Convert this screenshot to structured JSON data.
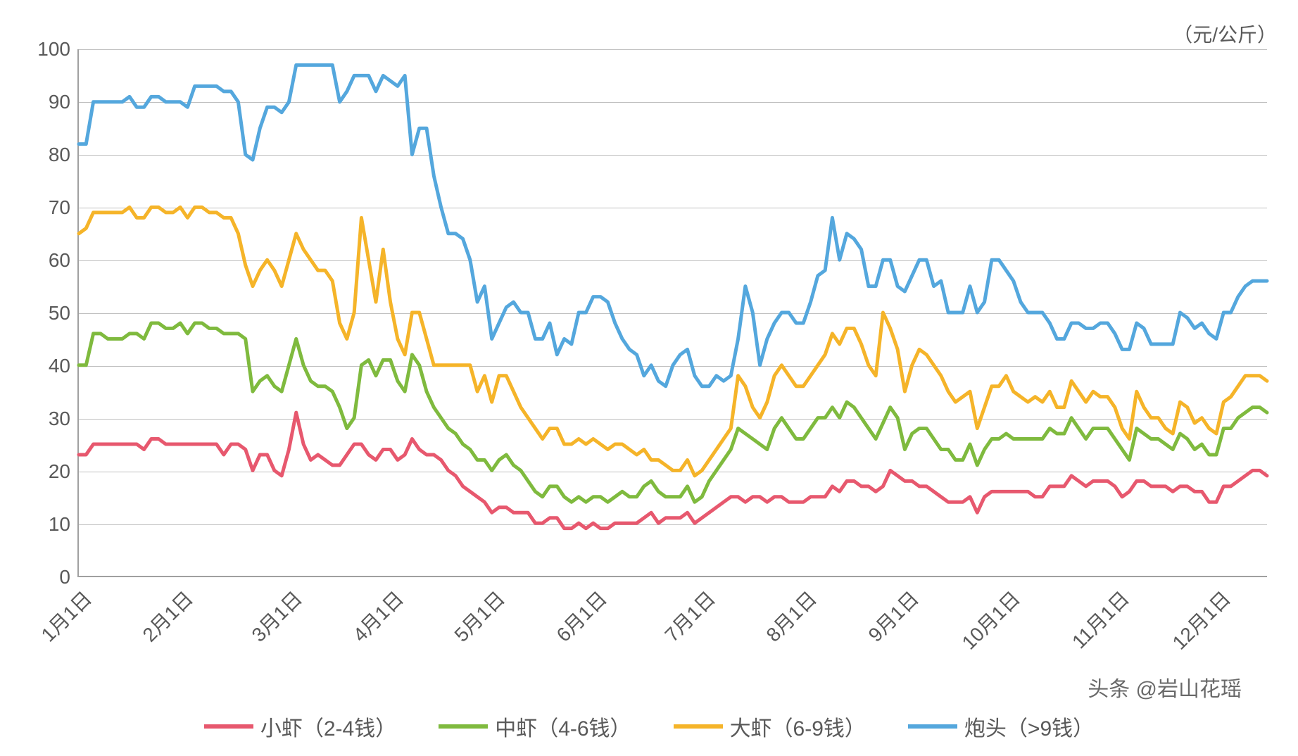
{
  "chart": {
    "type": "line",
    "unit_label": "（元/公斤）",
    "background_color": "#ffffff",
    "grid_color": "#bfbfbf",
    "axis_color": "#a0a0a0",
    "text_color": "#595959",
    "label_fontsize": 28,
    "legend_fontsize": 30,
    "line_width": 5,
    "ylim": [
      0,
      100
    ],
    "ytick_step": 10,
    "yticks": [
      0,
      10,
      20,
      30,
      40,
      50,
      60,
      70,
      80,
      90,
      100
    ],
    "x_categories": [
      "1月1日",
      "2月1日",
      "3月1日",
      "4月1日",
      "5月1日",
      "6月1日",
      "7月1日",
      "8月1日",
      "9月1日",
      "10月1日",
      "11月1日",
      "12月1日"
    ],
    "x_label_rotation": -45,
    "series": [
      {
        "name": "小虾（2-4钱）",
        "color": "#e7586e",
        "values": [
          23,
          23,
          25,
          25,
          25,
          25,
          25,
          25,
          25,
          24,
          26,
          26,
          25,
          25,
          25,
          25,
          25,
          25,
          25,
          25,
          23,
          25,
          25,
          24,
          20,
          23,
          23,
          20,
          19,
          24,
          31,
          25,
          22,
          23,
          22,
          21,
          21,
          23,
          25,
          25,
          23,
          22,
          24,
          24,
          22,
          23,
          26,
          24,
          23,
          23,
          22,
          20,
          19,
          17,
          16,
          15,
          14,
          12,
          13,
          13,
          12,
          12,
          12,
          10,
          10,
          11,
          11,
          9,
          9,
          10,
          9,
          10,
          9,
          9,
          10,
          10,
          10,
          10,
          11,
          12,
          10,
          11,
          11,
          11,
          12,
          10,
          11,
          12,
          13,
          14,
          15,
          15,
          14,
          15,
          15,
          14,
          15,
          15,
          14,
          14,
          14,
          15,
          15,
          15,
          17,
          16,
          18,
          18,
          17,
          17,
          16,
          17,
          20,
          19,
          18,
          18,
          17,
          17,
          16,
          15,
          14,
          14,
          14,
          15,
          12,
          15,
          16,
          16,
          16,
          16,
          16,
          16,
          15,
          15,
          17,
          17,
          17,
          19,
          18,
          17,
          18,
          18,
          18,
          17,
          15,
          16,
          18,
          18,
          17,
          17,
          17,
          16,
          17,
          17,
          16,
          16,
          14,
          14,
          17,
          17,
          18,
          19,
          20,
          20,
          19
        ]
      },
      {
        "name": "中虾（4-6钱）",
        "color": "#7fba3e",
        "values": [
          40,
          40,
          46,
          46,
          45,
          45,
          45,
          46,
          46,
          45,
          48,
          48,
          47,
          47,
          48,
          46,
          48,
          48,
          47,
          47,
          46,
          46,
          46,
          45,
          35,
          37,
          38,
          36,
          35,
          40,
          45,
          40,
          37,
          36,
          36,
          35,
          32,
          28,
          30,
          40,
          41,
          38,
          41,
          41,
          37,
          35,
          42,
          40,
          35,
          32,
          30,
          28,
          27,
          25,
          24,
          22,
          22,
          20,
          22,
          23,
          21,
          20,
          18,
          16,
          15,
          17,
          17,
          15,
          14,
          15,
          14,
          15,
          15,
          14,
          15,
          16,
          15,
          15,
          17,
          18,
          16,
          15,
          15,
          15,
          17,
          14,
          15,
          18,
          20,
          22,
          24,
          28,
          27,
          26,
          25,
          24,
          28,
          30,
          28,
          26,
          26,
          28,
          30,
          30,
          32,
          30,
          33,
          32,
          30,
          28,
          26,
          29,
          32,
          30,
          24,
          27,
          28,
          28,
          26,
          24,
          24,
          22,
          22,
          25,
          21,
          24,
          26,
          26,
          27,
          26,
          26,
          26,
          26,
          26,
          28,
          27,
          27,
          30,
          28,
          26,
          28,
          28,
          28,
          26,
          24,
          22,
          28,
          27,
          26,
          26,
          25,
          24,
          27,
          26,
          24,
          25,
          23,
          23,
          28,
          28,
          30,
          31,
          32,
          32,
          31
        ]
      },
      {
        "name": "大虾（6-9钱）",
        "color": "#f5b429",
        "values": [
          65,
          66,
          69,
          69,
          69,
          69,
          69,
          70,
          68,
          68,
          70,
          70,
          69,
          69,
          70,
          68,
          70,
          70,
          69,
          69,
          68,
          68,
          65,
          59,
          55,
          58,
          60,
          58,
          55,
          60,
          65,
          62,
          60,
          58,
          58,
          56,
          48,
          45,
          50,
          68,
          60,
          52,
          62,
          52,
          45,
          42,
          50,
          50,
          45,
          40,
          40,
          40,
          40,
          40,
          40,
          35,
          38,
          33,
          38,
          38,
          35,
          32,
          30,
          28,
          26,
          28,
          28,
          25,
          25,
          26,
          25,
          26,
          25,
          24,
          25,
          25,
          24,
          23,
          24,
          22,
          22,
          21,
          20,
          20,
          22,
          19,
          20,
          22,
          24,
          26,
          28,
          38,
          36,
          32,
          30,
          33,
          38,
          40,
          38,
          36,
          36,
          38,
          40,
          42,
          46,
          44,
          47,
          47,
          44,
          40,
          38,
          50,
          47,
          43,
          35,
          40,
          43,
          42,
          40,
          38,
          35,
          33,
          34,
          35,
          28,
          32,
          36,
          36,
          38,
          35,
          34,
          33,
          34,
          33,
          35,
          32,
          32,
          37,
          35,
          33,
          35,
          34,
          34,
          32,
          28,
          26,
          35,
          32,
          30,
          30,
          28,
          27,
          33,
          32,
          29,
          30,
          28,
          27,
          33,
          34,
          36,
          38,
          38,
          38,
          37
        ]
      },
      {
        "name": "炮头（>9钱）",
        "color": "#54a7dd",
        "values": [
          82,
          82,
          90,
          90,
          90,
          90,
          90,
          91,
          89,
          89,
          91,
          91,
          90,
          90,
          90,
          89,
          93,
          93,
          93,
          93,
          92,
          92,
          90,
          80,
          79,
          85,
          89,
          89,
          88,
          90,
          97,
          97,
          97,
          97,
          97,
          97,
          90,
          92,
          95,
          95,
          95,
          92,
          95,
          94,
          93,
          95,
          80,
          85,
          85,
          76,
          70,
          65,
          65,
          64,
          60,
          52,
          55,
          45,
          48,
          51,
          52,
          50,
          50,
          45,
          45,
          48,
          42,
          45,
          44,
          50,
          50,
          53,
          53,
          52,
          48,
          45,
          43,
          42,
          38,
          40,
          37,
          36,
          40,
          42,
          43,
          38,
          36,
          36,
          38,
          37,
          38,
          45,
          55,
          50,
          40,
          45,
          48,
          50,
          50,
          48,
          48,
          52,
          57,
          58,
          68,
          60,
          65,
          64,
          62,
          55,
          55,
          60,
          60,
          55,
          54,
          57,
          60,
          60,
          55,
          56,
          50,
          50,
          50,
          55,
          50,
          52,
          60,
          60,
          58,
          56,
          52,
          50,
          50,
          50,
          48,
          45,
          45,
          48,
          48,
          47,
          47,
          48,
          48,
          46,
          43,
          43,
          48,
          47,
          44,
          44,
          44,
          44,
          50,
          49,
          47,
          48,
          46,
          45,
          50,
          50,
          53,
          55,
          56,
          56,
          56
        ]
      }
    ],
    "legend_items": [
      {
        "label": "小虾（2-4钱）",
        "color": "#e7586e"
      },
      {
        "label": "中虾（4-6钱）",
        "color": "#7fba3e"
      },
      {
        "label": "大虾（6-9钱）",
        "color": "#f5b429"
      },
      {
        "label": "炮头（>9钱）",
        "color": "#54a7dd"
      }
    ],
    "watermark": "头条 @岩山花瑶"
  }
}
